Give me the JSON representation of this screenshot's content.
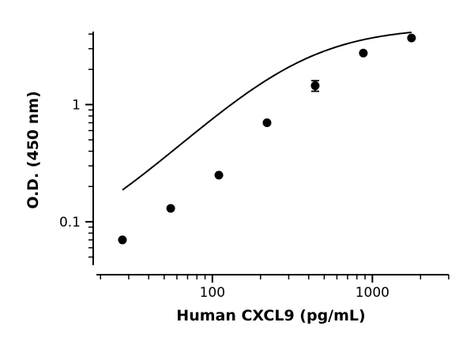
{
  "chart_data": {
    "type": "scatter",
    "title": "",
    "xlabel": "Human CXCL9 (pg/mL)",
    "ylabel": "O.D. (450 nm)",
    "x_scale": "log",
    "y_scale": "log",
    "xlim": [
      18,
      3000
    ],
    "ylim": [
      0.04,
      4.2
    ],
    "x_ticks": [
      100,
      1000
    ],
    "x_tick_labels": [
      "100",
      "1000"
    ],
    "y_ticks": [
      0.1,
      1
    ],
    "y_tick_labels": [
      "0.1",
      "1"
    ],
    "grid": false,
    "series": [
      {
        "x": [
          27.4,
          54.9,
          109.8,
          219.5,
          439,
          878,
          1756
        ],
        "y": [
          0.07,
          0.13,
          0.25,
          0.7,
          1.45,
          2.75,
          3.7
        ],
        "y_err": [
          0,
          0,
          0,
          0,
          0.15,
          0,
          0
        ]
      }
    ],
    "fit_curve": {
      "type": "4PL",
      "bottom": 0.045,
      "top": 4.6,
      "ec50": 350,
      "hill": 1.35
    }
  }
}
